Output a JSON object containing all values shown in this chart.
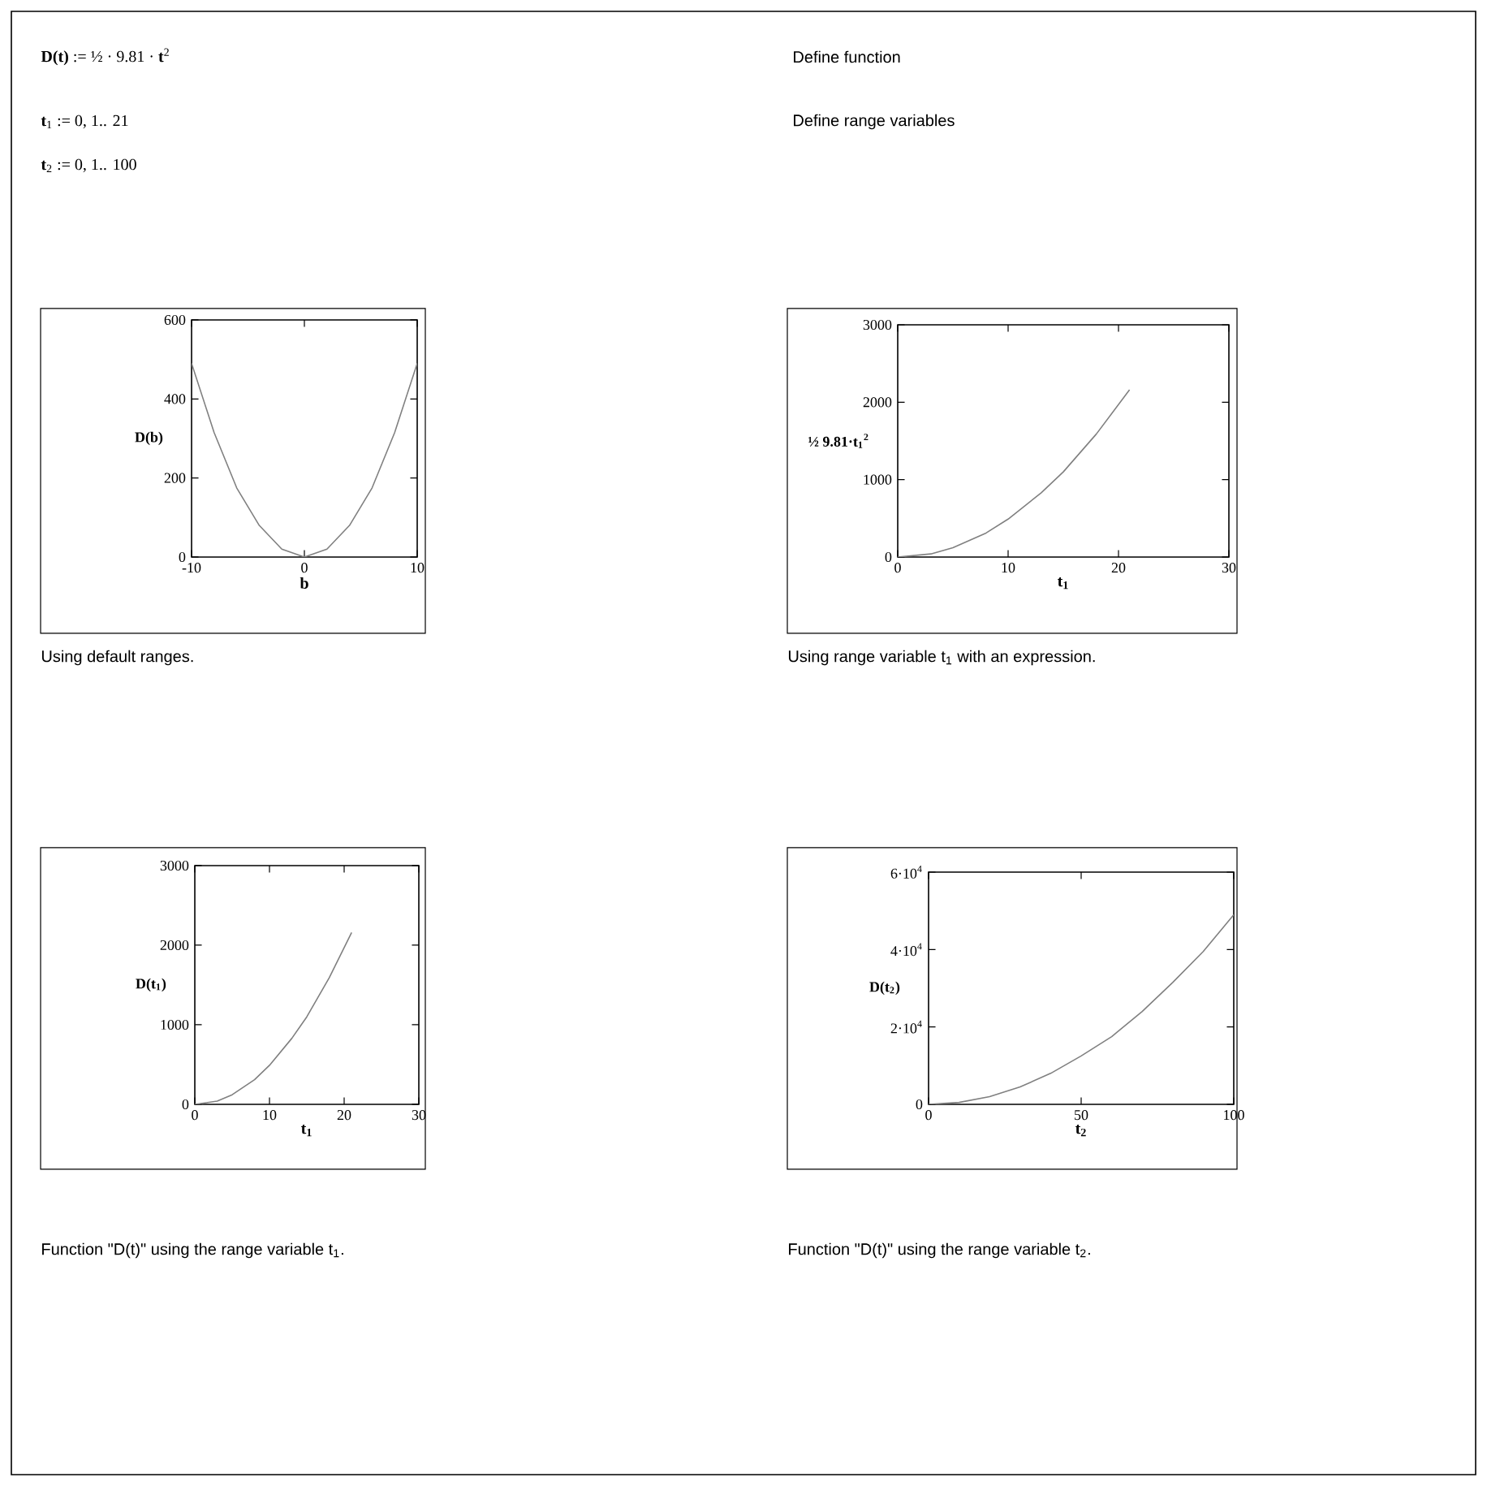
{
  "chart_data": [
    {
      "type": "line",
      "xlabel": "b",
      "ylabel": "D(b)",
      "color": "#808080",
      "x": [
        -10,
        -8,
        -6,
        -4,
        -2,
        0,
        2,
        4,
        6,
        8,
        10
      ],
      "values": [
        490,
        315,
        175,
        80,
        20,
        0,
        20,
        80,
        175,
        315,
        490
      ],
      "xlim": [
        -10,
        10
      ],
      "ylim": [
        0,
        600
      ],
      "xticks": [
        -10,
        0,
        10
      ],
      "yticks": [
        0,
        200,
        400,
        600
      ],
      "annotations": [
        "**D(t)** := ½ · 9.81 · **t**$^{2}$",
        "Define function",
        "**t**$_{1}$ := 0, 1.. 21",
        "Define range variables",
        "**t**$_{2}$ := 0, 1.. 100",
        "Using default ranges."
      ]
    },
    {
      "type": "line",
      "xlabel": "t$_{1}$",
      "ylabel": "½ 9.81·t$_{1}$$^{2}$",
      "color": "#808080",
      "x": [
        0,
        3,
        5,
        8,
        10,
        13,
        15,
        18,
        21
      ],
      "values": [
        0,
        40,
        120,
        310,
        490,
        830,
        1100,
        1590,
        2160
      ],
      "xlim": [
        0,
        30
      ],
      "ylim": [
        0,
        3000
      ],
      "xticks": [
        0,
        10,
        20,
        30
      ],
      "yticks": [
        0,
        1000,
        2000,
        3000
      ],
      "annotations": [
        "Using range variable t$_{1}$ with an expression."
      ]
    },
    {
      "type": "line",
      "xlabel": "t$_{1}$",
      "ylabel": "D(t$_{1}$)",
      "color": "#808080",
      "x": [
        0,
        3,
        5,
        8,
        10,
        13,
        15,
        18,
        21
      ],
      "values": [
        0,
        40,
        120,
        310,
        490,
        830,
        1100,
        1590,
        2160
      ],
      "xlim": [
        0,
        30
      ],
      "ylim": [
        0,
        3000
      ],
      "xticks": [
        0,
        10,
        20,
        30
      ],
      "yticks": [
        0,
        1000,
        2000,
        3000
      ],
      "annotations": [
        "Function \"D(t)\" using the range variable t$_{1}$."
      ]
    },
    {
      "type": "line",
      "xlabel": "t$_{2}$",
      "ylabel": "D(t$_{2}$)",
      "color": "#808080",
      "x": [
        0,
        10,
        20,
        30,
        40,
        50,
        60,
        70,
        80,
        90,
        100
      ],
      "values": [
        0,
        500,
        2000,
        4500,
        8000,
        12500,
        17500,
        24000,
        31500,
        39500,
        49000
      ],
      "xlim": [
        0,
        100
      ],
      "ylim": [
        0,
        60000
      ],
      "xticks": [
        0,
        50,
        100
      ],
      "yticks": [
        0,
        {
          "value": 20000,
          "label": "2·10$^{4}$"
        },
        {
          "value": 40000,
          "label": "4·10$^{4}$"
        },
        {
          "value": 60000,
          "label": "6·10$^{4}$"
        }
      ],
      "annotations": [
        "Function \"D(t)\" using the range variable t$_{2}$."
      ]
    }
  ]
}
